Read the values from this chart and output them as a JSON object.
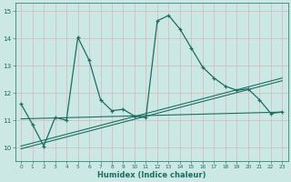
{
  "title": "",
  "xlabel": "Humidex (Indice chaleur)",
  "xlim": [
    -0.5,
    23.5
  ],
  "ylim": [
    9.5,
    15.3
  ],
  "yticks": [
    10,
    11,
    12,
    13,
    14,
    15
  ],
  "xticks": [
    0,
    1,
    2,
    3,
    4,
    5,
    6,
    7,
    8,
    9,
    10,
    11,
    12,
    13,
    14,
    15,
    16,
    17,
    18,
    19,
    20,
    21,
    22,
    23
  ],
  "bg_color": "#cce8e4",
  "grid_color": "#b8d8d4",
  "line_color": "#1a6e62",
  "series1_x": [
    0,
    1,
    2,
    3,
    4,
    5,
    6,
    7,
    8,
    9,
    10,
    11,
    12,
    13,
    14,
    15,
    16,
    17,
    18,
    19,
    20,
    21,
    22,
    23
  ],
  "series1_y": [
    11.6,
    10.85,
    10.05,
    11.1,
    11.0,
    14.05,
    13.2,
    11.75,
    11.35,
    11.4,
    11.15,
    11.1,
    14.65,
    14.85,
    14.35,
    13.65,
    12.95,
    12.55,
    12.25,
    12.1,
    12.15,
    11.75,
    11.25,
    11.3
  ],
  "series2_x": [
    0,
    23
  ],
  "series2_y": [
    10.05,
    12.55
  ],
  "series3_x": [
    0,
    23
  ],
  "series3_y": [
    9.95,
    12.45
  ],
  "series4_x": [
    0,
    23
  ],
  "series4_y": [
    11.05,
    11.3
  ]
}
